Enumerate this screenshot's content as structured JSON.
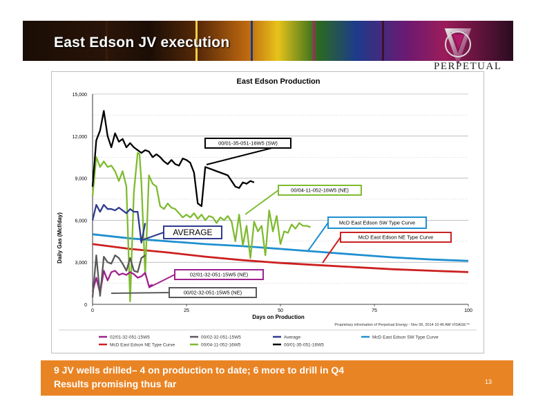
{
  "slide": {
    "title": "East Edson JV execution",
    "logo_text": "PERPETUAL",
    "bottom_line1": "9 JV wells drilled– 4 on production to date; 6 more to drill in Q4",
    "bottom_line2": "Results promising thus far",
    "page_number": "13",
    "colors": {
      "accent_orange": "#e98424",
      "banner_dark": "#1a0d05"
    }
  },
  "chart_data": {
    "type": "line",
    "title": "East Edson Production",
    "xlabel": "Days on Production",
    "ylabel": "Daily Gas (Mcf/day)",
    "xlim": [
      0,
      100
    ],
    "ylim": [
      0,
      15000
    ],
    "x_ticks": [
      "0",
      "25",
      "50",
      "75",
      "100"
    ],
    "y_ticks": [
      "0",
      "3,000",
      "6,000",
      "9,000",
      "12,000",
      "15,000"
    ],
    "grid": true,
    "legend_position": "bottom",
    "footnote": "Proprietary information of Perpetual Energy - Nov 06, 2014 10:46 AM  VISAGE™",
    "series": [
      {
        "name": "02/01-32-051-15W5",
        "color": "#a0208e",
        "x": [
          0,
          1,
          2,
          3,
          4,
          5,
          6,
          7,
          8,
          9,
          10,
          11,
          12,
          13,
          14,
          15,
          16
        ],
        "y": [
          900,
          1900,
          800,
          2400,
          1700,
          2300,
          2400,
          2100,
          2200,
          2100,
          2300,
          2150,
          1900,
          2000,
          2250,
          1300,
          1400
        ]
      },
      {
        "name": "00/02-32-051-15W5",
        "color": "#595959",
        "x": [
          0,
          1,
          2,
          3,
          4,
          5,
          6,
          7,
          8,
          9,
          10,
          11,
          12,
          13,
          14
        ],
        "y": [
          500,
          3500,
          600,
          3400,
          3000,
          2900,
          3500,
          3300,
          2900,
          2400,
          3300,
          2400,
          2300,
          3300,
          3500
        ]
      },
      {
        "name": "Average",
        "color": "#2f3b8e",
        "x": [
          0,
          1,
          2,
          3,
          4,
          5,
          6,
          7,
          8,
          9,
          10,
          11,
          12,
          13,
          14
        ],
        "y": [
          6000,
          7100,
          6600,
          7100,
          6800,
          6800,
          6700,
          6900,
          6700,
          6500,
          6800,
          6600,
          6600,
          4400,
          5800
        ]
      },
      {
        "name": "McD East Edson SW Type Curve",
        "color": "#1f8fd0",
        "x": [
          0,
          10,
          20,
          30,
          40,
          50,
          60,
          70,
          80,
          90,
          100
        ],
        "y": [
          5000,
          4700,
          4500,
          4300,
          4150,
          3950,
          3750,
          3550,
          3350,
          3200,
          3100
        ]
      },
      {
        "name": "McD East Edson NE Type Curve",
        "color": "#cc2020",
        "x": [
          0,
          10,
          20,
          30,
          40,
          50,
          60,
          70,
          80,
          90,
          100
        ],
        "y": [
          4300,
          3950,
          3700,
          3400,
          3150,
          2950,
          2800,
          2650,
          2500,
          2400,
          2300
        ]
      },
      {
        "name": "00/04-11-052-16W5",
        "color": "#7ebb2f",
        "x": [
          0,
          1,
          2,
          3,
          4,
          5,
          6,
          7,
          8,
          9,
          10,
          11,
          12,
          12.5,
          13,
          14,
          15,
          16,
          17,
          18,
          19,
          20,
          21,
          22,
          23,
          24,
          25,
          26,
          27,
          28,
          29,
          30,
          31,
          32,
          33,
          34,
          35,
          36,
          37,
          38,
          39,
          40,
          41,
          42,
          43,
          44,
          45,
          46,
          47,
          48,
          49,
          50,
          51,
          52,
          53,
          54,
          55,
          56,
          57,
          58
        ],
        "y": [
          7700,
          10500,
          9800,
          10200,
          9800,
          9900,
          9500,
          8800,
          9500,
          8400,
          200,
          8000,
          10800,
          10700,
          8700,
          2100,
          9200,
          8600,
          8400,
          7000,
          6800,
          7200,
          6900,
          6800,
          6500,
          6200,
          6400,
          6200,
          6500,
          6100,
          6400,
          6000,
          6300,
          6200,
          5800,
          6200,
          6000,
          6300,
          5900,
          4500,
          6400,
          4200,
          5600,
          3300,
          5900,
          5200,
          5600,
          3500,
          6700,
          5200,
          6300,
          4300,
          5200,
          5100,
          5700,
          5400,
          5800,
          5600,
          5600,
          5500
        ]
      },
      {
        "name": "00/01-35-051-16W5",
        "color": "#000000",
        "x": [
          0,
          1,
          2,
          3,
          4,
          5,
          6,
          7,
          8,
          9,
          10,
          11,
          12,
          13,
          14,
          15,
          16,
          17,
          18,
          19,
          20,
          21,
          22,
          23,
          24,
          25,
          26,
          27,
          28,
          29,
          30,
          31,
          32,
          33,
          34,
          35,
          36,
          37,
          38,
          39,
          40,
          41,
          42,
          43
        ],
        "y": [
          8400,
          11700,
          12400,
          13800,
          12000,
          11200,
          12200,
          11600,
          11800,
          11200,
          11500,
          11200,
          11000,
          10800,
          11000,
          10900,
          10500,
          10700,
          10500,
          10200,
          10000,
          10300,
          10000,
          9900,
          10400,
          10300,
          10100,
          9400,
          7200,
          7000,
          9800,
          9700,
          9600,
          9500,
          9400,
          9300,
          9200,
          8800,
          8400,
          8300,
          8700,
          8600,
          8800,
          8700
        ]
      }
    ],
    "annotations": [
      {
        "text": "00/01-35-051-16W5 (SW)",
        "border": "#000000"
      },
      {
        "text": "00/04-11-052-16W5 (NE)",
        "border": "#7ebb2f"
      },
      {
        "text": "McD East Edson SW Type Curve",
        "border": "#1f8fd0"
      },
      {
        "text": "McD East Edson NE Type Curve",
        "border": "#cc2020"
      },
      {
        "text": "AVERAGE",
        "border": "#2f3b8e"
      },
      {
        "text": "02/01-32-051-15W5 (NE)",
        "border": "#a0208e"
      },
      {
        "text": "00/02-32-051-15W5 (NE)",
        "border": "#595959"
      }
    ],
    "legend": [
      {
        "label": "02/01-32-051-15W5",
        "color": "#a0208e"
      },
      {
        "label": "00/02-32-051-15W5",
        "color": "#595959"
      },
      {
        "label": "Average",
        "color": "#2f3b8e"
      },
      {
        "label": "McD East Edson SW Type Curve",
        "color": "#1f8fd0"
      },
      {
        "label": "McD East Edson NE Type Curve",
        "color": "#cc2020"
      },
      {
        "label": "00/04-11-052-16W5",
        "color": "#7ebb2f"
      },
      {
        "label": "00/01-35-051-16W5",
        "color": "#000000"
      }
    ]
  }
}
